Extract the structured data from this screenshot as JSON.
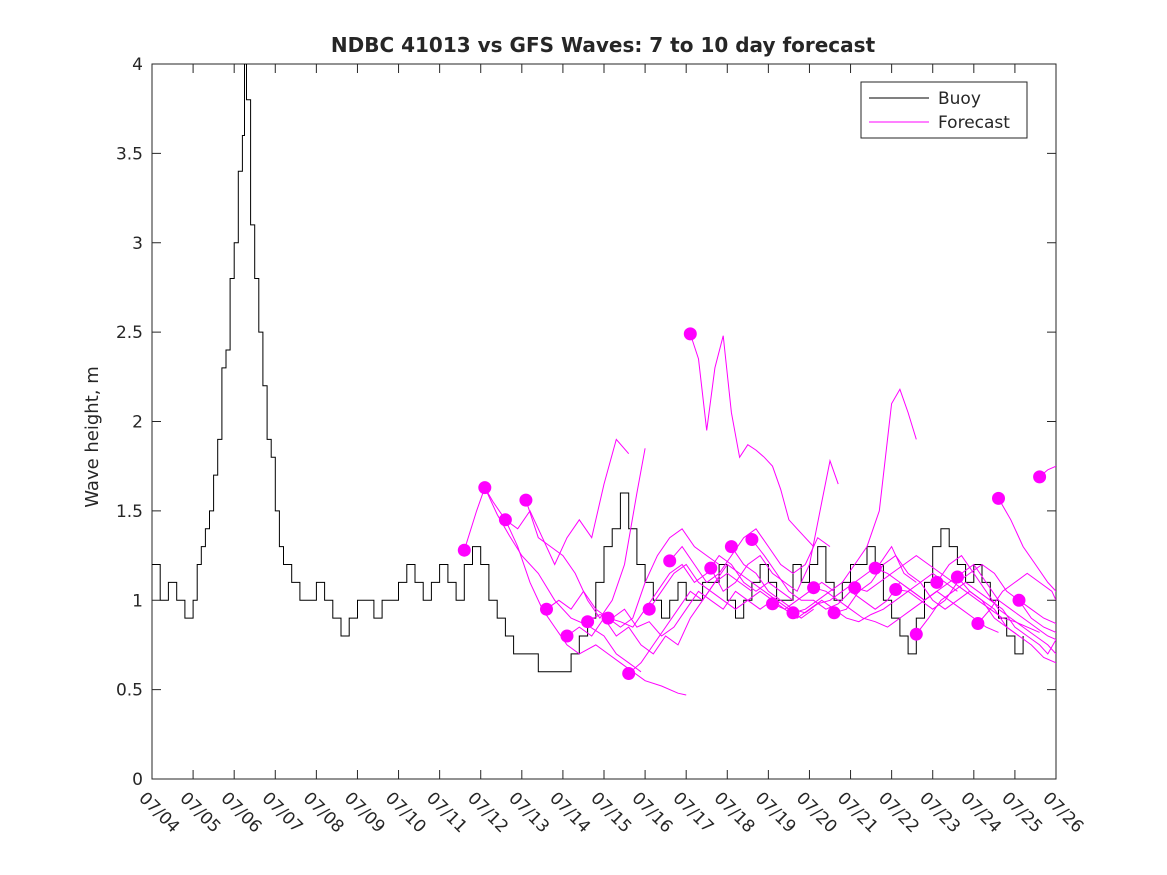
{
  "chart_data": {
    "type": "line",
    "title": "NDBC 41013 vs GFS Waves: 7 to 10 day forecast",
    "xlabel": "",
    "ylabel": "Wave height, m",
    "x_unit": "day (July)",
    "xlim": [
      4,
      26
    ],
    "ylim": [
      0,
      4
    ],
    "xticks": [
      4,
      5,
      6,
      7,
      8,
      9,
      10,
      11,
      12,
      13,
      14,
      15,
      16,
      17,
      18,
      19,
      20,
      21,
      22,
      23,
      24,
      25,
      26
    ],
    "xtick_labels": [
      "07/04",
      "07/05",
      "07/06",
      "07/07",
      "07/08",
      "07/09",
      "07/10",
      "07/11",
      "07/12",
      "07/13",
      "07/14",
      "07/15",
      "07/16",
      "07/17",
      "07/18",
      "07/19",
      "07/20",
      "07/21",
      "07/22",
      "07/23",
      "07/24",
      "07/25",
      "07/26"
    ],
    "yticks": [
      0,
      0.5,
      1,
      1.5,
      2,
      2.5,
      3,
      3.5,
      4
    ],
    "ytick_labels": [
      "0",
      "0.5",
      "1",
      "1.5",
      "2",
      "2.5",
      "3",
      "3.5",
      "4"
    ],
    "grid": false,
    "legend": {
      "position": "top-right",
      "entries": [
        "Buoy",
        "Forecast"
      ]
    },
    "colors": {
      "buoy": "#000000",
      "forecast": "#ff00ff"
    },
    "buoy": {
      "name": "Buoy",
      "x": [
        4.0,
        4.2,
        4.4,
        4.6,
        4.8,
        5.0,
        5.1,
        5.2,
        5.3,
        5.4,
        5.5,
        5.6,
        5.7,
        5.8,
        5.9,
        6.0,
        6.1,
        6.2,
        6.25,
        6.3,
        6.4,
        6.5,
        6.6,
        6.7,
        6.8,
        6.9,
        7.0,
        7.1,
        7.2,
        7.3,
        7.4,
        7.5,
        7.6,
        7.8,
        8.0,
        8.2,
        8.4,
        8.6,
        8.8,
        9.0,
        9.2,
        9.4,
        9.6,
        9.8,
        10.0,
        10.2,
        10.4,
        10.6,
        10.8,
        11.0,
        11.2,
        11.4,
        11.6,
        11.8,
        12.0,
        12.2,
        12.4,
        12.6,
        12.8,
        13.0,
        13.2,
        13.4,
        13.6,
        13.8,
        14.0,
        14.2,
        14.4,
        14.6,
        14.8,
        15.0,
        15.2,
        15.4,
        15.6,
        15.8,
        16.0,
        16.2,
        16.4,
        16.6,
        16.8,
        17.0,
        17.2,
        17.4,
        17.6,
        17.8,
        18.0,
        18.2,
        18.4,
        18.6,
        18.8,
        19.0,
        19.2,
        19.4,
        19.6,
        19.8,
        20.0,
        20.2,
        20.4,
        20.6,
        20.8,
        21.0,
        21.2,
        21.4,
        21.6,
        21.8,
        22.0,
        22.2,
        22.4,
        22.6,
        22.8,
        23.0,
        23.2,
        23.4,
        23.6,
        23.8,
        24.0,
        24.2,
        24.4,
        24.6,
        24.8,
        25.0,
        25.2
      ],
      "y": [
        1.2,
        1.0,
        1.1,
        1.0,
        0.9,
        1.0,
        1.2,
        1.3,
        1.4,
        1.5,
        1.7,
        1.9,
        2.3,
        2.4,
        2.8,
        3.0,
        3.4,
        3.6,
        4.0,
        3.8,
        3.1,
        2.8,
        2.5,
        2.2,
        1.9,
        1.8,
        1.5,
        1.3,
        1.2,
        1.2,
        1.1,
        1.1,
        1.0,
        1.0,
        1.1,
        1.0,
        0.9,
        0.8,
        0.9,
        1.0,
        1.0,
        0.9,
        1.0,
        1.0,
        1.1,
        1.2,
        1.1,
        1.0,
        1.1,
        1.2,
        1.1,
        1.0,
        1.2,
        1.3,
        1.2,
        1.0,
        0.9,
        0.8,
        0.7,
        0.7,
        0.7,
        0.6,
        0.6,
        0.6,
        0.6,
        0.7,
        0.8,
        0.9,
        1.1,
        1.3,
        1.4,
        1.6,
        1.4,
        1.2,
        1.1,
        1.0,
        0.9,
        1.0,
        1.1,
        1.0,
        1.0,
        1.1,
        1.1,
        1.2,
        1.0,
        0.9,
        1.0,
        1.1,
        1.2,
        1.1,
        1.0,
        1.0,
        1.2,
        1.1,
        1.2,
        1.3,
        1.1,
        1.0,
        1.1,
        1.2,
        1.2,
        1.3,
        1.2,
        1.0,
        0.9,
        0.8,
        0.7,
        0.9,
        1.1,
        1.3,
        1.4,
        1.3,
        1.2,
        1.1,
        1.2,
        1.1,
        1.0,
        0.9,
        0.8,
        0.7,
        0.8
      ]
    },
    "forecasts": [
      {
        "x": [
          11.6,
          11.9,
          12.1,
          12.4,
          12.7,
          13.0,
          13.4,
          13.8,
          14.2,
          14.6,
          15.0,
          15.3,
          15.6,
          15.9
        ],
        "y": [
          1.28,
          1.5,
          1.63,
          1.48,
          1.36,
          1.25,
          1.15,
          1.0,
          0.9,
          0.86,
          0.8,
          0.7,
          0.65,
          0.6
        ]
      },
      {
        "x": [
          12.1,
          12.3,
          12.6,
          12.9,
          13.2,
          13.5,
          13.8,
          14.1,
          14.4,
          14.8,
          15.1,
          15.4,
          15.7,
          16.0,
          16.4,
          16.8,
          17.0
        ],
        "y": [
          1.63,
          1.55,
          1.45,
          1.3,
          1.1,
          0.95,
          0.85,
          0.75,
          0.7,
          0.75,
          0.7,
          0.65,
          0.6,
          0.55,
          0.52,
          0.48,
          0.47
        ]
      },
      {
        "x": [
          12.6,
          12.9,
          13.2,
          13.5,
          13.8,
          14.1,
          14.4,
          14.7,
          15.0,
          15.3,
          15.6
        ],
        "y": [
          1.45,
          1.4,
          1.5,
          1.35,
          1.2,
          1.35,
          1.45,
          1.35,
          1.65,
          1.9,
          1.82
        ]
      },
      {
        "x": [
          13.1,
          13.4,
          13.7,
          14.0,
          14.3,
          14.6,
          14.9,
          15.2,
          15.5,
          15.8,
          16.0
        ],
        "y": [
          1.56,
          1.35,
          1.3,
          1.25,
          1.15,
          1.0,
          0.9,
          1.0,
          1.2,
          1.6,
          1.85
        ]
      },
      {
        "x": [
          13.6,
          13.9,
          14.2,
          14.5,
          14.8,
          15.1,
          15.4,
          15.7,
          16.0,
          16.3,
          16.6,
          16.9,
          17.2,
          17.5,
          17.8
        ],
        "y": [
          0.95,
          1.0,
          0.95,
          1.05,
          0.95,
          0.9,
          0.85,
          0.9,
          1.1,
          1.25,
          1.35,
          1.4,
          1.3,
          1.25,
          1.2
        ]
      },
      {
        "x": [
          14.1,
          14.4,
          14.7,
          15.0,
          15.3,
          15.6,
          15.9,
          16.2,
          16.5,
          16.8,
          17.1,
          17.4,
          17.7,
          18.0,
          18.3,
          18.6
        ],
        "y": [
          0.8,
          0.85,
          0.8,
          0.9,
          0.8,
          0.85,
          0.75,
          0.7,
          0.8,
          0.75,
          0.9,
          1.0,
          1.1,
          1.15,
          1.1,
          1.05
        ]
      },
      {
        "x": [
          14.6,
          14.9,
          15.2,
          15.5,
          15.8,
          16.1,
          16.4,
          16.7,
          17.0,
          17.3,
          17.6,
          17.9,
          18.2,
          18.5,
          18.8,
          19.1
        ],
        "y": [
          0.88,
          0.92,
          0.9,
          0.95,
          0.85,
          0.88,
          0.8,
          0.85,
          0.95,
          1.05,
          1.0,
          0.95,
          1.05,
          1.0,
          0.95,
          1.0
        ]
      },
      {
        "x": [
          15.1,
          15.4,
          15.7,
          16.0,
          16.3,
          16.6,
          16.9,
          17.2,
          17.5,
          17.8,
          18.1,
          18.4,
          18.7,
          19.0,
          19.3,
          19.6
        ],
        "y": [
          0.9,
          0.88,
          0.85,
          0.95,
          1.05,
          1.15,
          1.2,
          1.1,
          1.15,
          1.25,
          1.2,
          1.1,
          1.05,
          1.1,
          1.05,
          1.0
        ]
      },
      {
        "x": [
          15.6,
          15.9,
          16.2,
          16.5,
          16.8,
          17.1,
          17.4,
          17.7,
          18.0,
          18.3,
          18.6,
          18.9,
          19.2,
          19.5,
          19.8,
          20.1
        ],
        "y": [
          0.59,
          0.65,
          0.75,
          0.85,
          0.95,
          1.05,
          1.0,
          1.1,
          1.2,
          1.15,
          1.1,
          1.05,
          1.0,
          0.95,
          0.9,
          0.95
        ]
      },
      {
        "x": [
          16.1,
          16.4,
          16.7,
          17.0,
          17.3,
          17.6,
          17.9,
          18.2,
          18.5,
          18.8,
          19.1,
          19.4,
          19.7,
          20.0,
          20.3,
          20.6
        ],
        "y": [
          0.95,
          1.05,
          1.15,
          1.2,
          1.1,
          1.05,
          1.0,
          0.95,
          1.0,
          1.05,
          1.0,
          0.95,
          1.0,
          1.05,
          1.1,
          1.05
        ]
      },
      {
        "x": [
          16.6,
          16.9,
          17.2,
          17.5,
          17.8,
          18.1,
          18.4,
          18.7,
          19.0,
          19.3,
          19.6,
          19.9,
          20.2,
          20.5
        ],
        "y": [
          1.22,
          1.3,
          1.2,
          1.1,
          1.15,
          1.25,
          1.35,
          1.4,
          1.3,
          1.2,
          1.15,
          1.2,
          1.35,
          1.3
        ]
      },
      {
        "x": [
          17.1,
          17.3,
          17.5,
          17.7,
          17.9,
          18.1,
          18.3,
          18.5,
          18.7,
          18.9,
          19.1,
          19.3,
          19.5,
          19.7,
          19.9,
          20.1
        ],
        "y": [
          2.49,
          2.35,
          1.95,
          2.3,
          2.48,
          2.05,
          1.8,
          1.87,
          1.84,
          1.8,
          1.75,
          1.62,
          1.45,
          1.4,
          1.35,
          1.3
        ]
      },
      {
        "x": [
          17.6,
          17.9,
          18.2,
          18.5,
          18.8,
          19.1,
          19.4,
          19.7,
          20.0,
          20.3,
          20.5,
          20.7
        ],
        "y": [
          1.18,
          1.05,
          1.1,
          1.2,
          1.25,
          1.15,
          1.1,
          1.05,
          1.2,
          1.55,
          1.78,
          1.65
        ]
      },
      {
        "x": [
          18.1,
          18.4,
          18.7,
          19.0,
          19.3,
          19.6,
          19.9,
          20.2,
          20.5,
          20.8,
          21.1,
          21.4,
          21.7,
          22.0,
          22.3,
          22.6
        ],
        "y": [
          1.3,
          1.2,
          1.15,
          1.05,
          1.0,
          0.95,
          0.93,
          0.98,
          1.0,
          1.05,
          1.1,
          1.15,
          1.2,
          1.3,
          1.15,
          1.1
        ]
      },
      {
        "x": [
          18.6,
          18.9,
          19.2,
          19.5,
          19.8,
          20.1,
          20.4,
          20.7,
          21.0,
          21.3,
          21.6,
          21.9,
          22.2,
          22.5,
          22.8,
          23.1
        ],
        "y": [
          1.34,
          1.25,
          1.15,
          1.05,
          1.0,
          1.0,
          0.95,
          0.98,
          1.05,
          1.0,
          0.95,
          1.0,
          1.1,
          1.05,
          1.0,
          1.05
        ]
      },
      {
        "x": [
          19.1,
          19.4,
          19.7,
          20.0,
          20.3,
          20.6,
          20.9,
          21.2,
          21.5,
          21.8,
          22.1,
          22.4,
          22.7,
          23.0,
          23.3,
          23.6
        ],
        "y": [
          0.98,
          0.95,
          0.9,
          0.95,
          1.0,
          0.95,
          0.9,
          0.88,
          0.92,
          0.95,
          1.0,
          1.05,
          1.1,
          1.15,
          1.1,
          1.05
        ]
      },
      {
        "x": [
          19.6,
          19.9,
          20.2,
          20.5,
          20.8,
          21.1,
          21.4,
          21.7,
          22.0,
          22.2,
          22.4,
          22.6
        ],
        "y": [
          0.93,
          0.95,
          1.0,
          1.05,
          1.1,
          1.2,
          1.3,
          1.5,
          2.1,
          2.18,
          2.05,
          1.9
        ]
      },
      {
        "x": [
          20.1,
          20.4,
          20.7,
          21.0,
          21.3,
          21.6,
          21.9,
          22.2,
          22.5,
          22.8,
          23.1,
          23.4,
          23.7,
          24.0,
          24.3,
          24.6
        ],
        "y": [
          1.07,
          1.05,
          1.0,
          0.95,
          0.9,
          0.88,
          0.85,
          0.9,
          0.95,
          1.0,
          1.05,
          1.0,
          0.95,
          0.9,
          0.85,
          0.82
        ]
      },
      {
        "x": [
          20.6,
          20.9,
          21.2,
          21.5,
          21.8,
          22.1,
          22.4,
          22.7,
          23.0,
          23.3,
          23.6,
          23.9,
          24.2,
          24.5,
          24.8,
          25.1
        ],
        "y": [
          0.93,
          0.95,
          1.05,
          1.1,
          1.2,
          1.25,
          1.15,
          1.1,
          1.0,
          0.95,
          1.0,
          1.05,
          1.0,
          0.95,
          0.85,
          0.8
        ]
      },
      {
        "x": [
          21.1,
          21.4,
          21.7,
          22.0,
          22.3,
          22.6,
          22.9,
          23.2,
          23.5,
          23.8,
          24.1,
          24.4,
          24.7,
          25.0,
          25.3,
          25.6
        ],
        "y": [
          1.07,
          1.05,
          1.1,
          1.15,
          1.2,
          1.25,
          1.2,
          1.15,
          1.1,
          1.05,
          1.0,
          0.95,
          0.9,
          0.88,
          0.85,
          0.82
        ]
      },
      {
        "x": [
          21.6,
          21.9,
          22.2,
          22.5,
          22.8,
          23.1,
          23.4,
          23.7,
          24.0,
          24.3,
          24.6,
          24.9,
          25.2,
          25.5,
          25.8,
          26.0
        ],
        "y": [
          1.18,
          1.15,
          1.1,
          1.05,
          1.0,
          1.05,
          1.1,
          1.15,
          1.2,
          1.1,
          1.0,
          0.95,
          0.9,
          0.85,
          0.8,
          0.78
        ]
      },
      {
        "x": [
          22.1,
          22.4,
          22.7,
          23.0,
          23.3,
          23.6,
          23.9,
          24.2,
          24.5,
          24.8,
          25.1,
          25.4,
          25.7,
          26.0
        ],
        "y": [
          1.06,
          1.05,
          1.0,
          0.95,
          1.0,
          1.1,
          1.15,
          1.2,
          1.15,
          1.05,
          1.0,
          0.9,
          0.85,
          0.82
        ]
      },
      {
        "x": [
          22.6,
          22.9,
          23.2,
          23.5,
          23.8,
          24.1,
          24.4,
          24.7,
          25.0,
          25.3,
          25.6,
          25.8,
          26.0
        ],
        "y": [
          0.81,
          0.9,
          1.0,
          1.05,
          1.1,
          1.05,
          1.0,
          0.95,
          0.85,
          0.8,
          0.75,
          0.7,
          0.78
        ]
      },
      {
        "x": [
          23.1,
          23.4,
          23.7,
          24.0,
          24.3,
          24.6,
          24.9,
          25.2,
          25.5,
          25.8,
          26.0
        ],
        "y": [
          1.1,
          1.2,
          1.25,
          1.15,
          1.05,
          0.95,
          0.9,
          0.85,
          0.8,
          0.75,
          0.7
        ]
      },
      {
        "x": [
          23.6,
          23.9,
          24.2,
          24.5,
          24.8,
          25.1,
          25.4,
          25.7,
          26.0
        ],
        "y": [
          1.13,
          1.05,
          1.0,
          0.9,
          0.85,
          0.8,
          0.75,
          0.68,
          0.65
        ]
      },
      {
        "x": [
          24.1,
          24.4,
          24.7,
          25.0,
          25.3,
          25.6,
          25.9,
          26.0
        ],
        "y": [
          0.87,
          0.95,
          1.05,
          1.1,
          1.15,
          1.1,
          1.05,
          1.0
        ]
      },
      {
        "x": [
          24.6,
          24.9,
          25.2,
          25.5,
          25.8,
          26.0
        ],
        "y": [
          1.57,
          1.45,
          1.3,
          1.2,
          1.1,
          1.05
        ]
      },
      {
        "x": [
          25.1,
          25.4,
          25.7,
          26.0
        ],
        "y": [
          1.0,
          0.95,
          0.9,
          0.87
        ]
      },
      {
        "x": [
          25.6,
          25.8,
          26.0
        ],
        "y": [
          1.69,
          1.73,
          1.75
        ]
      }
    ]
  }
}
